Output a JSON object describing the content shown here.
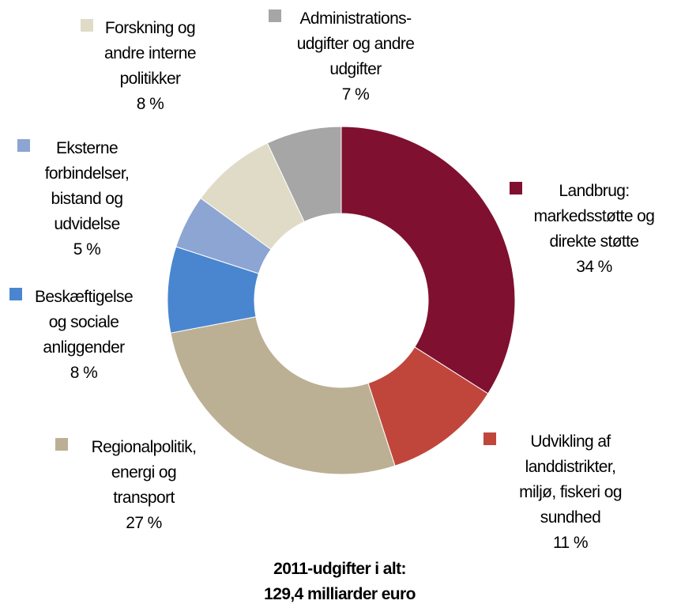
{
  "chart_data": {
    "type": "donut",
    "categories": [
      "Landbrug:\nmarkedsstøtte og\ndirekte støtte",
      "Udvikling af\nlanddistrikter,\nmiljø, fiskeri og\nsundhed",
      "Regionalpolitik,\nenergi og\ntransport",
      "Beskæftigelse\nog sociale\nanliggender",
      "Eksterne\nforbindelser,\nbistand og\nudvidelse",
      "Forskning og\nandre interne\npolitikker",
      "Administrations-\nudgifter og andre\nudgifter"
    ],
    "values": [
      34,
      11,
      27,
      8,
      5,
      8,
      7
    ],
    "value_labels": [
      "34 %",
      "11 %",
      "27 %",
      "8 %",
      "5 %",
      "8 %",
      "7 %"
    ],
    "colors": [
      "#7f1030",
      "#c0463c",
      "#bcb094",
      "#4a86d0",
      "#8ca5d2",
      "#e0dbc6",
      "#a6a6a6"
    ],
    "footnote": [
      "2011-udgifter i alt:",
      "129,4 milliarder euro"
    ]
  }
}
